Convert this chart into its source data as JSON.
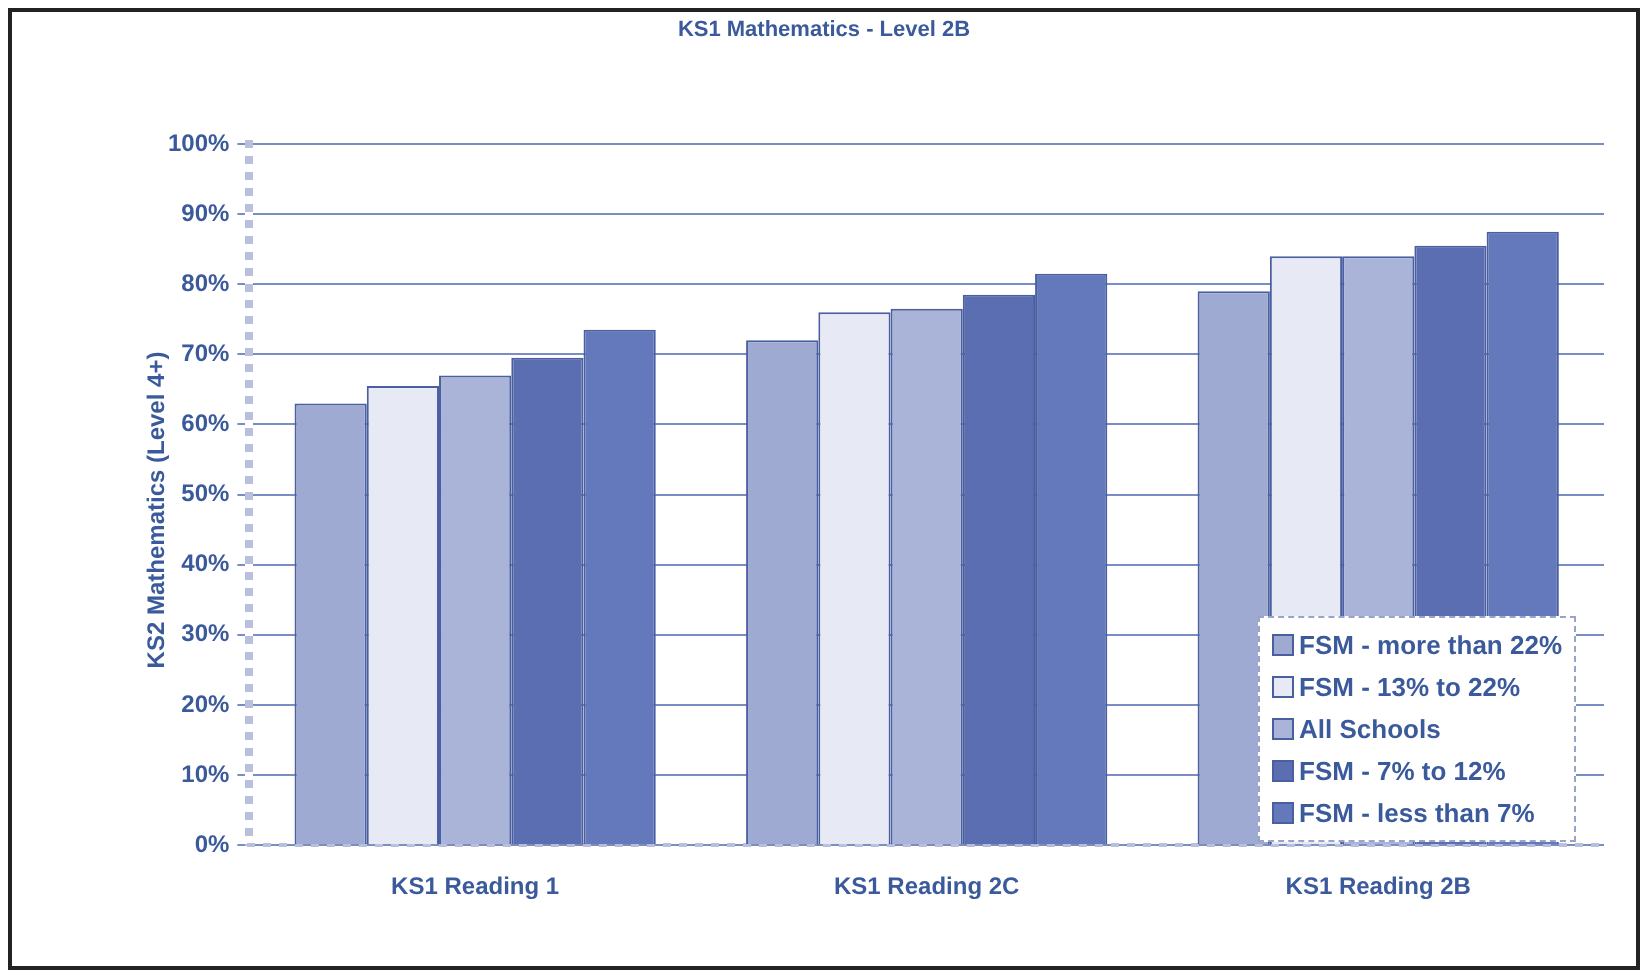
{
  "chart_data": {
    "type": "bar",
    "title": "KS1 Mathematics - Level 2B",
    "ylabel": "KS2 Mathematics (Level 4+)",
    "categories": [
      "KS1 Reading 1",
      "KS1 Reading 2C",
      "KS1 Reading 2B"
    ],
    "series": [
      {
        "name": "FSM - more than 22%",
        "color": "#9faad3",
        "values": [
          63,
          72,
          79
        ]
      },
      {
        "name": "FSM - 13% to 22%",
        "color": "#e7e9f5",
        "values": [
          65.5,
          76,
          84
        ]
      },
      {
        "name": "All Schools",
        "color": "#aab3d8",
        "values": [
          67,
          76.5,
          84
        ]
      },
      {
        "name": "FSM - 7% to 12%",
        "color": "#5b6eb1",
        "values": [
          69.5,
          78.5,
          85.5
        ]
      },
      {
        "name": "FSM - less than 7%",
        "color": "#6379bb",
        "values": [
          73.5,
          81.5,
          87.5
        ]
      }
    ],
    "ylim": [
      0,
      100
    ],
    "yticks": [
      {
        "value": 0,
        "label": "0%"
      },
      {
        "value": 10,
        "label": "10%"
      },
      {
        "value": 20,
        "label": "20%"
      },
      {
        "value": 30,
        "label": "30%"
      },
      {
        "value": 40,
        "label": "40%"
      },
      {
        "value": 50,
        "label": "50%"
      },
      {
        "value": 60,
        "label": "60%"
      },
      {
        "value": 70,
        "label": "70%"
      },
      {
        "value": 80,
        "label": "80%"
      },
      {
        "value": 90,
        "label": "90%"
      },
      {
        "value": 100,
        "label": "100%"
      }
    ],
    "grid": "y",
    "legend": "bottom right"
  }
}
